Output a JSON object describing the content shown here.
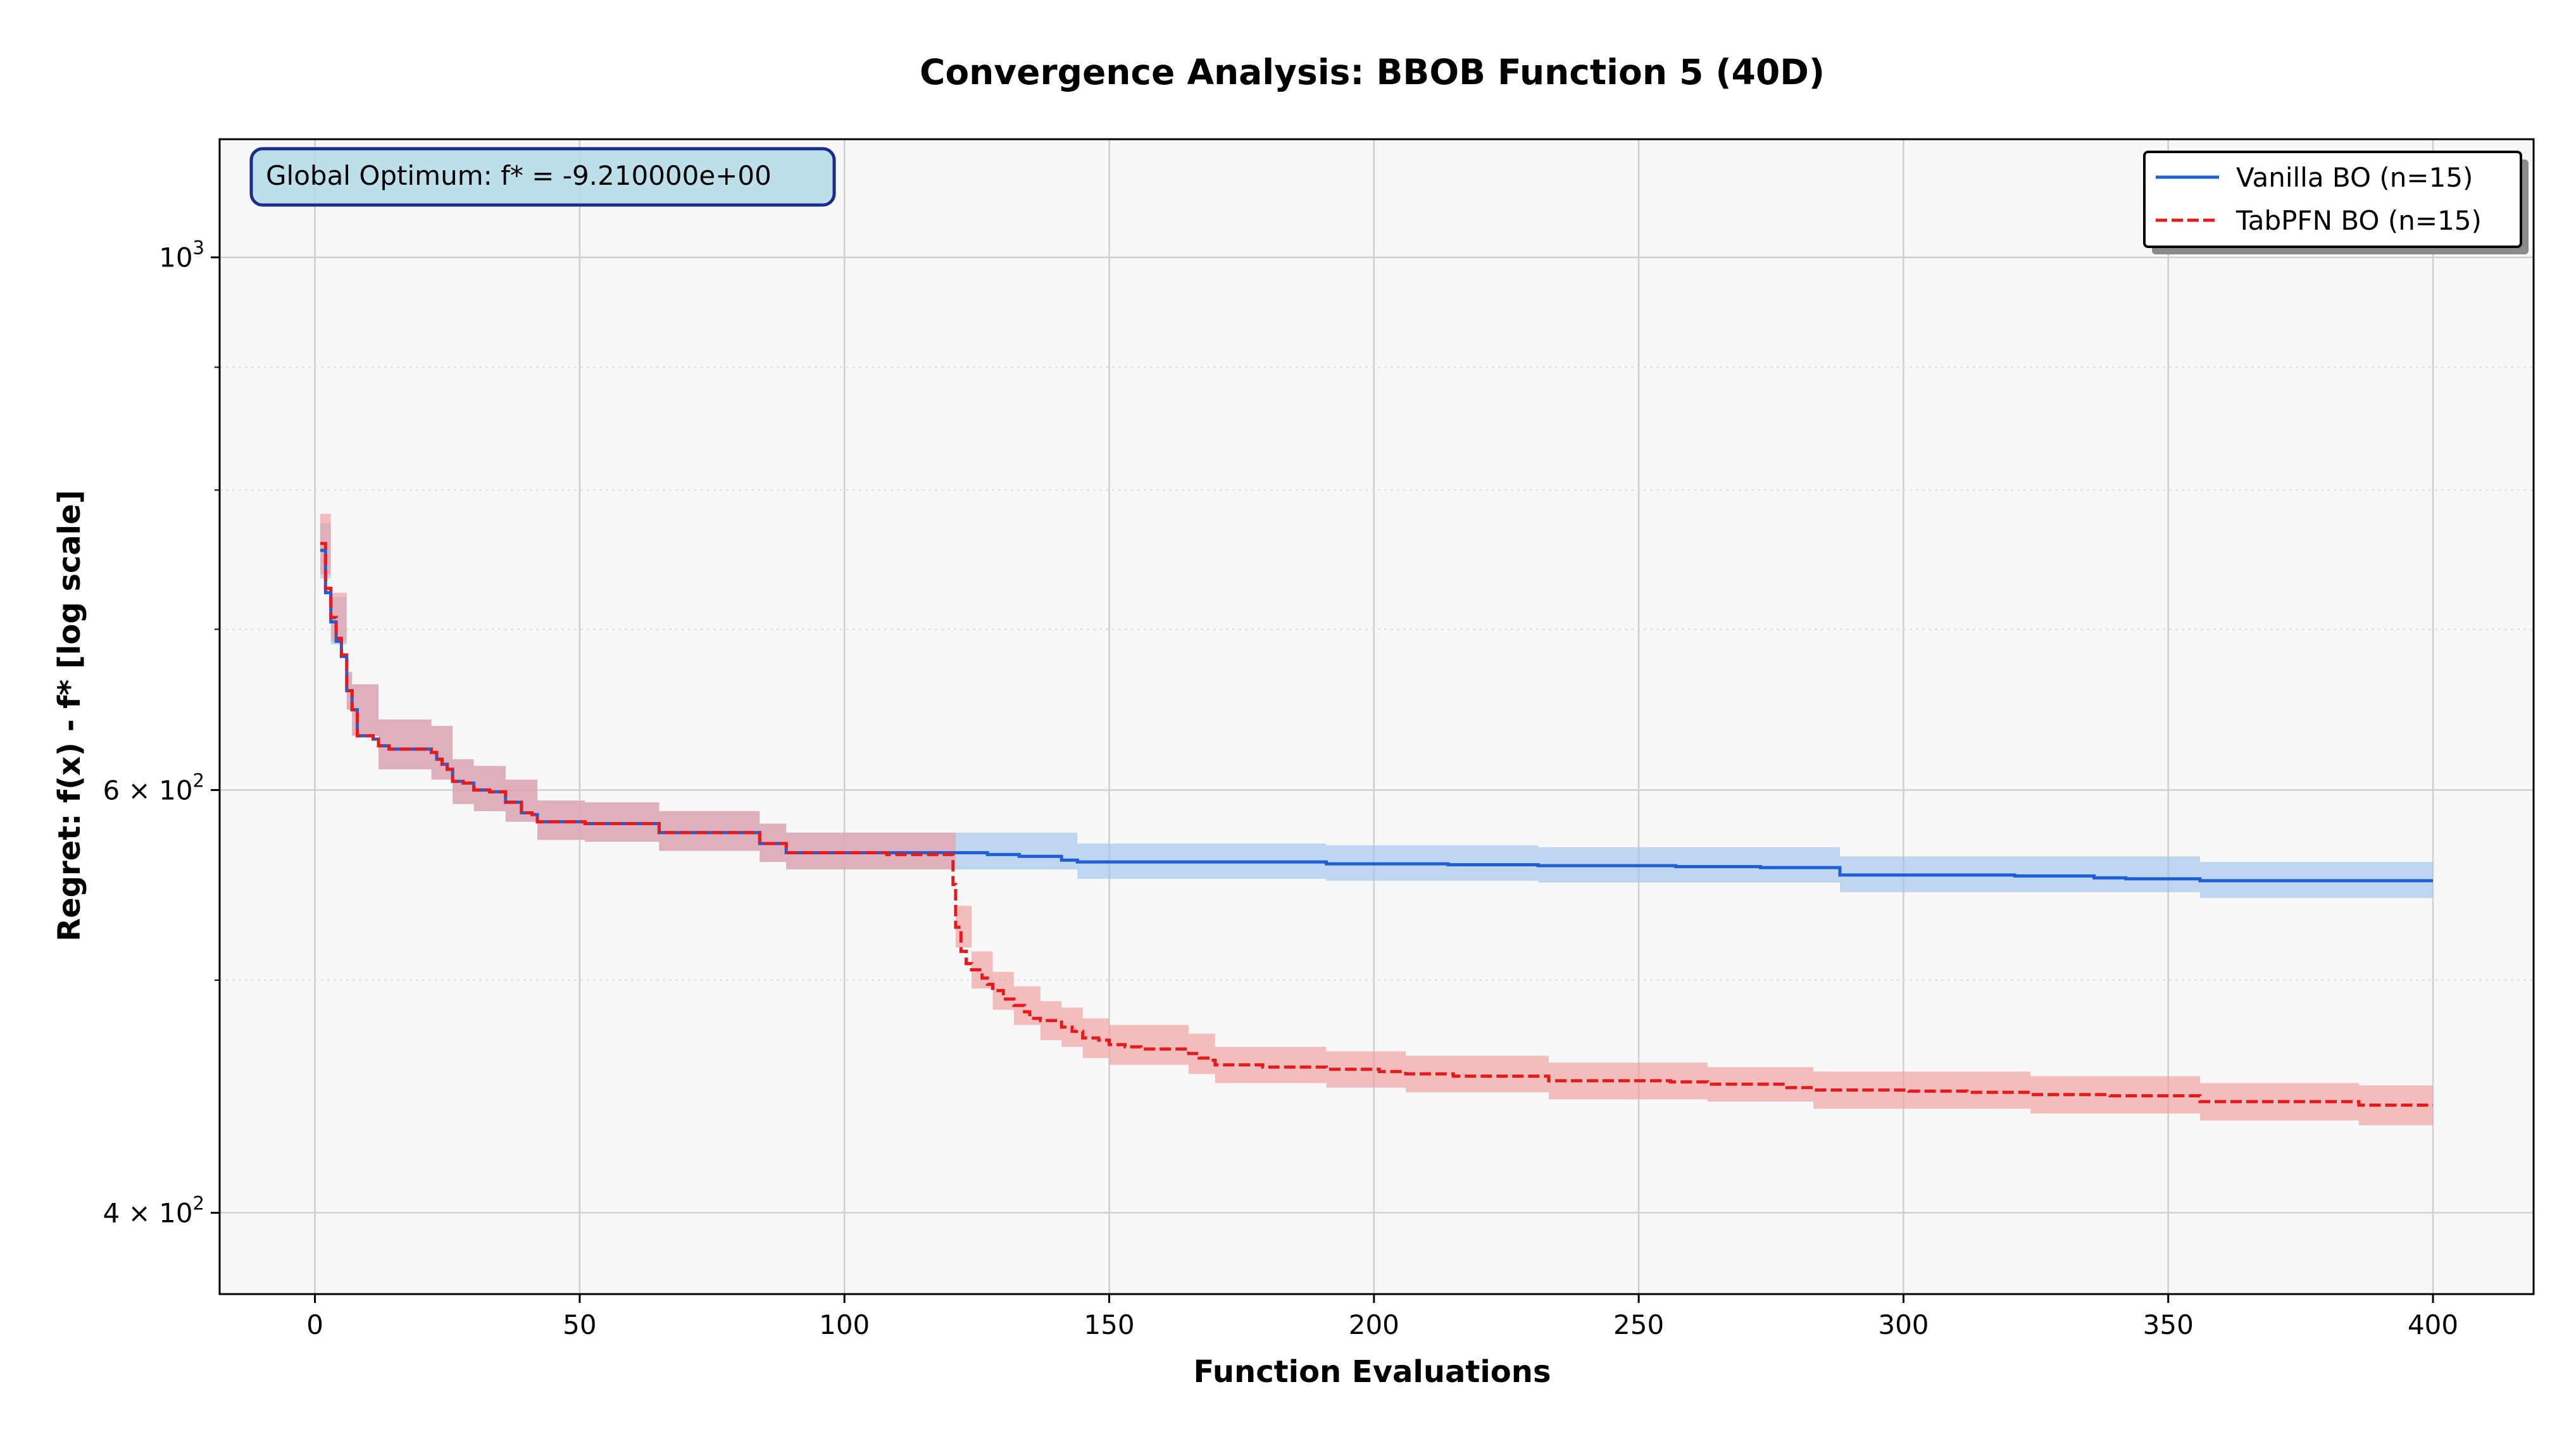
{
  "chart_data": {
    "type": "line",
    "title": "Convergence Analysis: BBOB Function 5 (40D)",
    "xlabel": "Function Evaluations",
    "ylabel": "Regret: f(x) - f* [log scale]",
    "yscale": "log",
    "xlim": [
      -18,
      419
    ],
    "ylim": [
      370,
      1120
    ],
    "x_ticks": [
      0,
      50,
      100,
      150,
      200,
      250,
      300,
      350,
      400
    ],
    "x_tick_labels": [
      "0",
      "50",
      "100",
      "150",
      "200",
      "250",
      "300",
      "350",
      "400"
    ],
    "y_ticks": [
      {
        "value": 1000,
        "base": "10",
        "exp": "3"
      },
      {
        "value": 600,
        "base": "6 × 10",
        "exp": "2"
      },
      {
        "value": 400,
        "base": "4 × 10",
        "exp": "2"
      }
    ],
    "y_minor_ticks": [
      500,
      700,
      800,
      900
    ],
    "grid": true,
    "legend_position": "top-right",
    "annotation": "Global Optimum: f* = -9.210000e+00",
    "series": [
      {
        "name": "Vanilla BO (n=15)",
        "color": "#1f5fd6",
        "band_color": "#9cc2ee",
        "style": "solid",
        "points": [
          [
            1,
            755
          ],
          [
            2,
            725
          ],
          [
            3,
            705
          ],
          [
            4,
            692
          ],
          [
            5,
            682
          ],
          [
            6,
            660
          ],
          [
            7,
            648
          ],
          [
            8,
            632
          ],
          [
            9,
            632
          ],
          [
            11,
            630
          ],
          [
            12,
            626
          ],
          [
            14,
            624
          ],
          [
            21,
            624
          ],
          [
            22,
            622
          ],
          [
            23,
            618
          ],
          [
            24,
            615
          ],
          [
            25,
            612
          ],
          [
            26,
            605
          ],
          [
            28,
            604
          ],
          [
            29,
            604
          ],
          [
            30,
            600
          ],
          [
            31,
            600
          ],
          [
            33,
            599
          ],
          [
            35,
            599
          ],
          [
            36,
            593
          ],
          [
            38,
            593
          ],
          [
            39,
            587
          ],
          [
            41,
            586
          ],
          [
            42,
            582
          ],
          [
            50,
            582
          ],
          [
            51,
            581
          ],
          [
            64,
            581
          ],
          [
            65,
            576
          ],
          [
            83,
            576
          ],
          [
            84,
            570
          ],
          [
            88,
            570
          ],
          [
            89,
            565
          ],
          [
            120,
            565
          ],
          [
            126,
            565
          ],
          [
            127,
            564
          ],
          [
            132,
            564
          ],
          [
            133,
            563
          ],
          [
            140,
            563
          ],
          [
            141,
            561
          ],
          [
            143,
            561
          ],
          [
            144,
            560
          ],
          [
            190,
            560
          ],
          [
            191,
            559
          ],
          [
            213,
            559
          ],
          [
            214,
            558.5
          ],
          [
            230,
            558.5
          ],
          [
            231,
            558
          ],
          [
            256,
            558
          ],
          [
            257,
            557.5
          ],
          [
            272,
            557.5
          ],
          [
            273,
            557
          ],
          [
            287,
            557
          ],
          [
            288,
            553
          ],
          [
            320,
            553
          ],
          [
            321,
            552.5
          ],
          [
            335,
            552.5
          ],
          [
            336,
            551.5
          ],
          [
            341,
            551.5
          ],
          [
            342,
            551
          ],
          [
            355,
            551
          ],
          [
            356,
            550
          ],
          [
            400,
            550
          ]
        ],
        "band_lower": [
          [
            1,
            735
          ],
          [
            3,
            690
          ],
          [
            6,
            648
          ],
          [
            7,
            632
          ],
          [
            12,
            612
          ],
          [
            22,
            606
          ],
          [
            26,
            592
          ],
          [
            30,
            588
          ],
          [
            36,
            582
          ],
          [
            42,
            572
          ],
          [
            51,
            571
          ],
          [
            65,
            566
          ],
          [
            84,
            560
          ],
          [
            89,
            556
          ],
          [
            120,
            556
          ],
          [
            144,
            551
          ],
          [
            191,
            550
          ],
          [
            231,
            549
          ],
          [
            288,
            544
          ],
          [
            356,
            541
          ],
          [
            400,
            541
          ]
        ],
        "band_upper": [
          [
            1,
            775
          ],
          [
            3,
            722
          ],
          [
            6,
            672
          ],
          [
            7,
            664
          ],
          [
            12,
            642
          ],
          [
            22,
            638
          ],
          [
            26,
            618
          ],
          [
            30,
            614
          ],
          [
            36,
            606
          ],
          [
            42,
            594
          ],
          [
            51,
            593
          ],
          [
            65,
            588
          ],
          [
            84,
            581
          ],
          [
            89,
            576
          ],
          [
            120,
            576
          ],
          [
            144,
            570
          ],
          [
            191,
            569
          ],
          [
            231,
            568
          ],
          [
            288,
            563
          ],
          [
            356,
            560
          ],
          [
            400,
            560
          ]
        ]
      },
      {
        "name": "TabPFN BO (n=15)",
        "color": "#e41a1c",
        "band_color": "#f19a9b",
        "style": "dashed",
        "points": [
          [
            1,
            760
          ],
          [
            2,
            728
          ],
          [
            3,
            708
          ],
          [
            4,
            694
          ],
          [
            5,
            683
          ],
          [
            6,
            660
          ],
          [
            7,
            648
          ],
          [
            8,
            632
          ],
          [
            9,
            632
          ],
          [
            11,
            630
          ],
          [
            12,
            626
          ],
          [
            14,
            624
          ],
          [
            21,
            624
          ],
          [
            22,
            622
          ],
          [
            23,
            618
          ],
          [
            24,
            615
          ],
          [
            25,
            612
          ],
          [
            26,
            605
          ],
          [
            28,
            604
          ],
          [
            29,
            604
          ],
          [
            30,
            600
          ],
          [
            31,
            600
          ],
          [
            33,
            599
          ],
          [
            35,
            599
          ],
          [
            36,
            593
          ],
          [
            38,
            593
          ],
          [
            39,
            587
          ],
          [
            41,
            586
          ],
          [
            42,
            582
          ],
          [
            50,
            582
          ],
          [
            51,
            581
          ],
          [
            64,
            581
          ],
          [
            65,
            576
          ],
          [
            83,
            576
          ],
          [
            84,
            570
          ],
          [
            88,
            570
          ],
          [
            89,
            565
          ],
          [
            107,
            565
          ],
          [
            108,
            564
          ],
          [
            120,
            564
          ],
          [
            120.5,
            548
          ],
          [
            121,
            526
          ],
          [
            122,
            514
          ],
          [
            123,
            508
          ],
          [
            124,
            505
          ],
          [
            126,
            501
          ],
          [
            127,
            498
          ],
          [
            128,
            495
          ],
          [
            130,
            491
          ],
          [
            132,
            488
          ],
          [
            134,
            485
          ],
          [
            135,
            482
          ],
          [
            137,
            481
          ],
          [
            140,
            481
          ],
          [
            141,
            478
          ],
          [
            143,
            476
          ],
          [
            145,
            473
          ],
          [
            148,
            472
          ],
          [
            150,
            470
          ],
          [
            153,
            469
          ],
          [
            156,
            468
          ],
          [
            163,
            468
          ],
          [
            165,
            466
          ],
          [
            167,
            464
          ],
          [
            169,
            463
          ],
          [
            170,
            461
          ],
          [
            178,
            461
          ],
          [
            179,
            460
          ],
          [
            190,
            460
          ],
          [
            191,
            459
          ],
          [
            200,
            459
          ],
          [
            201,
            458
          ],
          [
            205,
            458
          ],
          [
            206,
            457
          ],
          [
            214,
            457
          ],
          [
            215,
            456
          ],
          [
            232,
            456
          ],
          [
            233,
            454
          ],
          [
            255,
            454
          ],
          [
            256,
            453.5
          ],
          [
            262,
            453.5
          ],
          [
            263,
            452.5
          ],
          [
            277,
            452.5
          ],
          [
            278,
            451
          ],
          [
            282,
            451
          ],
          [
            283,
            450
          ],
          [
            300,
            450
          ],
          [
            301,
            449.5
          ],
          [
            311,
            449.5
          ],
          [
            312,
            449
          ],
          [
            323,
            449
          ],
          [
            324,
            448
          ],
          [
            338,
            448
          ],
          [
            339,
            447.5
          ],
          [
            355,
            447.5
          ],
          [
            356,
            445
          ],
          [
            385,
            445
          ],
          [
            386,
            443.5
          ],
          [
            400,
            443.5
          ]
        ],
        "band_lower": [
          [
            1,
            738
          ],
          [
            3,
            692
          ],
          [
            6,
            648
          ],
          [
            7,
            632
          ],
          [
            12,
            612
          ],
          [
            22,
            606
          ],
          [
            26,
            592
          ],
          [
            30,
            588
          ],
          [
            36,
            582
          ],
          [
            42,
            572
          ],
          [
            51,
            571
          ],
          [
            65,
            566
          ],
          [
            84,
            560
          ],
          [
            89,
            556
          ],
          [
            120,
            556
          ],
          [
            121,
            516
          ],
          [
            124,
            496
          ],
          [
            128,
            486
          ],
          [
            132,
            479
          ],
          [
            137,
            472
          ],
          [
            141,
            469
          ],
          [
            145,
            464
          ],
          [
            150,
            461
          ],
          [
            165,
            457
          ],
          [
            170,
            453
          ],
          [
            191,
            451
          ],
          [
            206,
            449
          ],
          [
            233,
            446
          ],
          [
            263,
            445
          ],
          [
            283,
            442
          ],
          [
            324,
            440
          ],
          [
            356,
            437
          ],
          [
            386,
            435
          ],
          [
            400,
            435
          ]
        ],
        "band_upper": [
          [
            1,
            782
          ],
          [
            3,
            725
          ],
          [
            6,
            672
          ],
          [
            7,
            664
          ],
          [
            12,
            642
          ],
          [
            22,
            638
          ],
          [
            26,
            618
          ],
          [
            30,
            614
          ],
          [
            36,
            606
          ],
          [
            42,
            594
          ],
          [
            51,
            593
          ],
          [
            65,
            588
          ],
          [
            84,
            581
          ],
          [
            89,
            576
          ],
          [
            120,
            576
          ],
          [
            121,
            537
          ],
          [
            124,
            514
          ],
          [
            128,
            504
          ],
          [
            132,
            497
          ],
          [
            137,
            490
          ],
          [
            141,
            487
          ],
          [
            145,
            482
          ],
          [
            150,
            479
          ],
          [
            165,
            475
          ],
          [
            170,
            469
          ],
          [
            191,
            467
          ],
          [
            206,
            465
          ],
          [
            233,
            462
          ],
          [
            263,
            460
          ],
          [
            283,
            458
          ],
          [
            324,
            456
          ],
          [
            356,
            453
          ],
          [
            386,
            452
          ],
          [
            400,
            452
          ]
        ]
      }
    ]
  }
}
